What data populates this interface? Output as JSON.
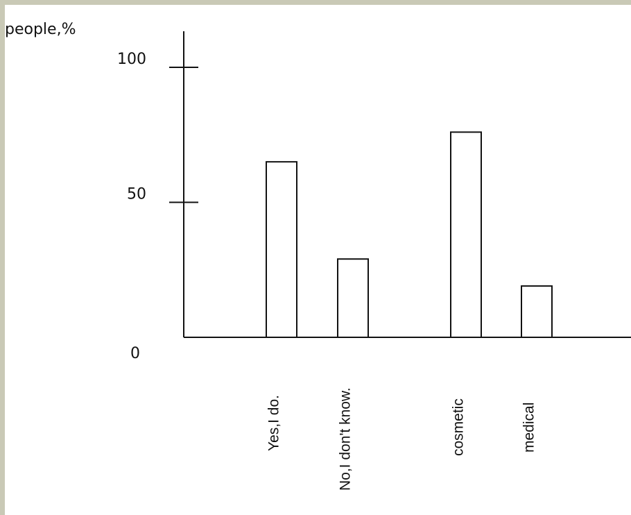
{
  "chart_data": {
    "type": "bar",
    "ylabel": "people,%",
    "categories": [
      "Yes,I do.",
      "No,I don't know.",
      "cosmetic",
      "medical"
    ],
    "values": [
      65,
      29,
      76,
      19
    ],
    "ylim": [
      0,
      100
    ],
    "yticks": [
      0,
      50,
      100
    ],
    "ytick_labels": [
      "0",
      "50",
      "100"
    ],
    "grid": false
  },
  "colors": {
    "frame": "#c9c9b6",
    "background": "#ffffff",
    "ink": "#111111"
  }
}
